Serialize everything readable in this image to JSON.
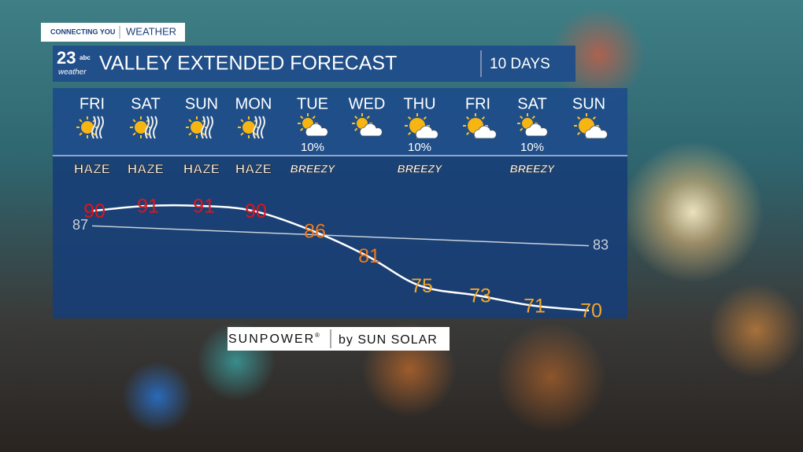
{
  "header": {
    "tag": "CONNECTING YOU",
    "section": "WEATHER",
    "logo_number": "23",
    "logo_network": "abc",
    "logo_word": "weather",
    "title": "VALLEY EXTENDED FORECAST",
    "range": "10 DAYS"
  },
  "days": [
    {
      "day": "FRI",
      "icon": "haze",
      "condition": "HAZE"
    },
    {
      "day": "SAT",
      "icon": "haze",
      "condition": "HAZE"
    },
    {
      "day": "SUN",
      "icon": "haze",
      "condition": "HAZE"
    },
    {
      "day": "MON",
      "icon": "haze",
      "condition": "HAZE"
    },
    {
      "day": "TUE",
      "icon": "cloud",
      "precip": "10%",
      "condition": "BREEZY"
    },
    {
      "day": "WED",
      "icon": "cloud"
    },
    {
      "day": "THU",
      "icon": "sun-cloud",
      "precip": "10%",
      "condition": "BREEZY"
    },
    {
      "day": "FRI",
      "icon": "sun-cloud"
    },
    {
      "day": "SAT",
      "icon": "cloud",
      "precip": "10%",
      "condition": "BREEZY"
    },
    {
      "day": "SUN",
      "icon": "sun-cloud"
    }
  ],
  "chart_data": {
    "type": "line",
    "categories": [
      "FRI",
      "SAT",
      "SUN",
      "MON",
      "TUE",
      "WED",
      "THU",
      "FRI",
      "SAT",
      "SUN"
    ],
    "series": [
      {
        "color": "#ffffff",
        "values": [
          90,
          91,
          91,
          90,
          86,
          81,
          75,
          73,
          71,
          70
        ],
        "label_colors": [
          "#e0141a",
          "#e0141a",
          "#e0141a",
          "#e0141a",
          "#f07a1a",
          "#f07a1a",
          "#f5a623",
          "#f5a623",
          "#f5a623",
          "#f5a623"
        ]
      }
    ],
    "normal": {
      "color": "#c8d0dc",
      "values": [
        87,
        83
      ]
    }
  },
  "sponsor": {
    "brand": "SUNPOWER",
    "mark": "®",
    "by": "by SUN SOLAR"
  }
}
